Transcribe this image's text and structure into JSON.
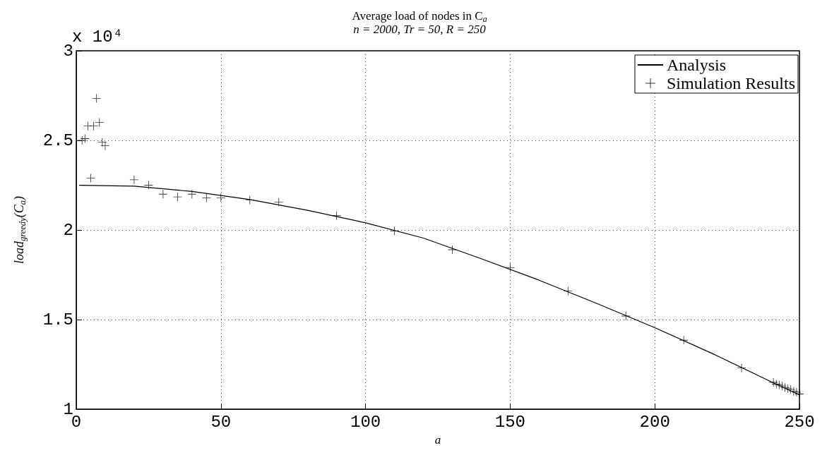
{
  "chart_data": {
    "type": "line",
    "title": "Average load of nodes in C$_{a}$",
    "subtitle": "n = 2000, Tr = 50, R = 250",
    "xlabel": "a",
    "ylabel": "load$_{greedy}$(C$_{a}$)",
    "annotations": [
      "x 10⁴"
    ],
    "series": [
      {
        "name": "Analysis",
        "color": "#000000",
        "marker": "none",
        "line_style": "solid",
        "x": [
          1,
          20,
          40,
          60,
          80,
          100,
          120,
          140,
          160,
          180,
          200,
          220,
          240,
          250
        ],
        "values": [
          2.25,
          2.245,
          2.215,
          2.17,
          2.11,
          2.04,
          1.955,
          1.84,
          1.72,
          1.59,
          1.455,
          1.31,
          1.155,
          1.08
        ]
      },
      {
        "name": "Simulation Results",
        "type": "scatter",
        "color": "#000000",
        "marker": "cross",
        "x": [
          2,
          3,
          4,
          5,
          6,
          7,
          8,
          9,
          10,
          20,
          25,
          30,
          35,
          40,
          45,
          50,
          60,
          70,
          90,
          110,
          130,
          150,
          170,
          190,
          210,
          230,
          241,
          242,
          243,
          244,
          245,
          246,
          247,
          248,
          249,
          250
        ],
        "values": [
          2.5,
          2.51,
          2.58,
          2.29,
          2.58,
          2.735,
          2.6,
          2.49,
          2.47,
          2.28,
          2.25,
          2.2,
          2.185,
          2.2,
          2.18,
          2.18,
          2.167,
          2.156,
          2.08,
          1.995,
          1.89,
          1.79,
          1.66,
          1.52,
          1.385,
          1.23,
          1.15,
          1.14,
          1.135,
          1.13,
          1.12,
          1.115,
          1.11,
          1.1,
          1.095,
          1.085
        ]
      }
    ],
    "xlim": [
      0,
      250
    ],
    "xticks": [
      0,
      50,
      100,
      150,
      200,
      250
    ],
    "ylim": [
      1,
      3
    ],
    "yticks": [
      1,
      1.5,
      2,
      2.5,
      3
    ],
    "grid": true,
    "legend": "top right"
  }
}
